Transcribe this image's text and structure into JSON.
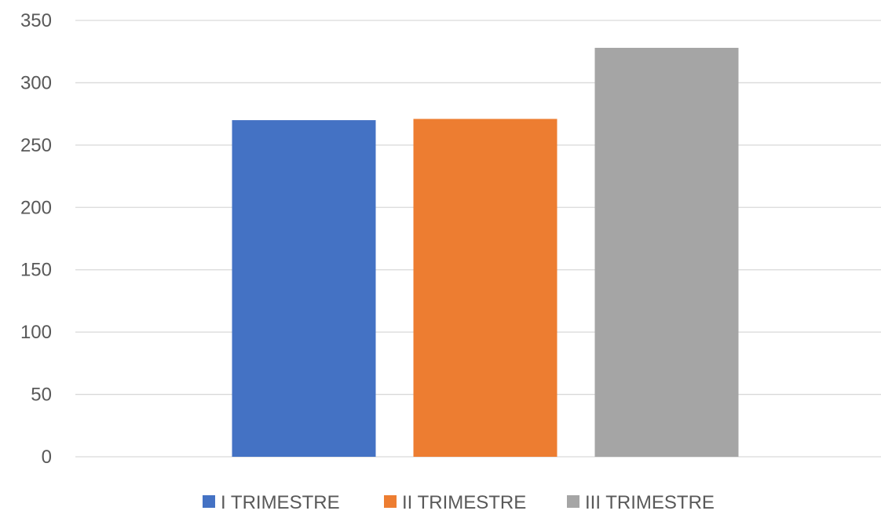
{
  "chart_data": {
    "type": "bar",
    "categories": [
      ""
    ],
    "series": [
      {
        "name": "I TRIMESTRE",
        "values": [
          270
        ],
        "color": "#4472C4"
      },
      {
        "name": "II TRIMESTRE",
        "values": [
          271
        ],
        "color": "#ED7D31"
      },
      {
        "name": "III TRIMESTRE",
        "values": [
          328
        ],
        "color": "#A5A5A5"
      }
    ],
    "title": "",
    "xlabel": "",
    "ylabel": "",
    "ylim": [
      0,
      350
    ],
    "yticks": [
      "0",
      "50",
      "100",
      "150",
      "200",
      "250",
      "300",
      "350"
    ],
    "grid": true,
    "legend_position": "bottom"
  }
}
